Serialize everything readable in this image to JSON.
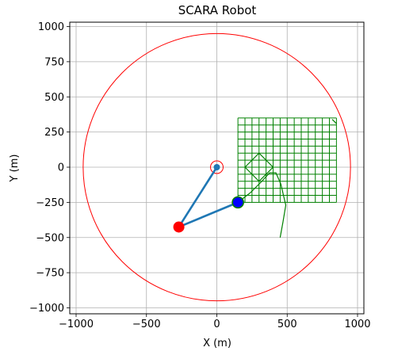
{
  "chart_data": {
    "type": "line",
    "title": "SCARA Robot",
    "xlabel": "X (m)",
    "ylabel": "Y (m)",
    "xlim": [
      -1000,
      1000
    ],
    "ylim": [
      -1000,
      1000
    ],
    "xticks": [
      -1000,
      -500,
      0,
      500,
      1000
    ],
    "yticks": [
      -1000,
      -750,
      -500,
      -250,
      0,
      250,
      500,
      750,
      1000
    ],
    "xtick_labels": [
      "−1000",
      "−500",
      "0",
      "500",
      "1000"
    ],
    "ytick_labels": [
      "−1000",
      "−750",
      "−500",
      "−250",
      "0",
      "250",
      "500",
      "750",
      "1000"
    ],
    "grid": true,
    "workspace_circle": {
      "center": [
        0,
        0
      ],
      "radius": 950,
      "color": "#ff0000"
    },
    "base_circle": {
      "center": [
        0,
        0
      ],
      "radius": 45,
      "color": "#ff0000"
    },
    "arm": {
      "color": "#1f77b4",
      "points": [
        [
          0,
          0
        ],
        [
          -270,
          -425
        ],
        [
          150,
          -250
        ]
      ]
    },
    "joints": [
      {
        "name": "base",
        "x": 0,
        "y": 0,
        "color": "#1f77b4",
        "size": "small"
      },
      {
        "name": "elbow",
        "x": -270,
        "y": -425,
        "color": "#ff0000",
        "size": "large"
      },
      {
        "name": "end-effector",
        "x": 150,
        "y": -250,
        "color": "#0000ff",
        "edge": "#008000",
        "size": "large"
      }
    ],
    "trajectory": {
      "color": "#008000",
      "grid_x": [
        150,
        850,
        14
      ],
      "grid_y": [
        -250,
        350,
        12
      ],
      "diamond": [
        [
          200,
          0
        ],
        [
          300,
          100
        ],
        [
          400,
          0
        ],
        [
          300,
          -100
        ],
        [
          200,
          0
        ]
      ],
      "path": [
        [
          150,
          -250
        ],
        [
          240,
          -180
        ],
        [
          320,
          -100
        ],
        [
          375,
          -40
        ],
        [
          420,
          -40
        ],
        [
          455,
          -120
        ],
        [
          490,
          -270
        ],
        [
          470,
          -390
        ],
        [
          450,
          -500
        ]
      ],
      "tail": [
        [
          820,
          340
        ],
        [
          850,
          310
        ]
      ]
    }
  }
}
